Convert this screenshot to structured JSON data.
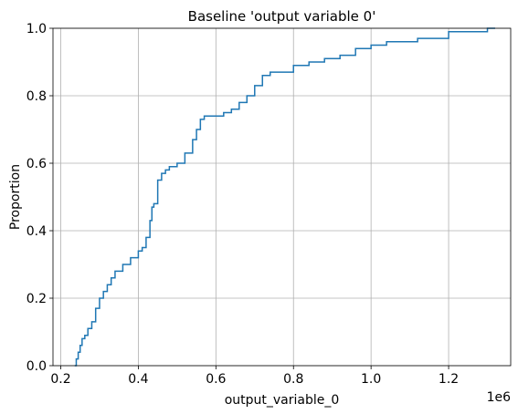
{
  "chart_data": {
    "type": "line",
    "title": "Baseline 'output variable 0'",
    "xlabel": "output_variable_0",
    "ylabel": "Proportion",
    "x_offset_label": "1e6",
    "xlim": [
      0.18,
      1.36
    ],
    "ylim": [
      0,
      1
    ],
    "grid": true,
    "x_ticks": [
      0.2,
      0.4,
      0.6,
      0.8,
      1.0,
      1.2
    ],
    "x_tick_labels": [
      "0.2",
      "0.4",
      "0.6",
      "0.8",
      "1.0",
      "1.2"
    ],
    "y_ticks": [
      0.0,
      0.2,
      0.4,
      0.6,
      0.8,
      1.0
    ],
    "y_tick_labels": [
      "0.0",
      "0.2",
      "0.4",
      "0.6",
      "0.8",
      "1.0"
    ],
    "series": [
      {
        "name": "output_variable_0",
        "color": "#1f77b4",
        "step": true,
        "x": [
          0.236,
          0.24,
          0.245,
          0.25,
          0.255,
          0.262,
          0.27,
          0.28,
          0.29,
          0.3,
          0.31,
          0.32,
          0.33,
          0.34,
          0.36,
          0.38,
          0.4,
          0.41,
          0.42,
          0.43,
          0.435,
          0.44,
          0.45,
          0.46,
          0.47,
          0.48,
          0.5,
          0.52,
          0.54,
          0.55,
          0.56,
          0.57,
          0.58,
          0.6,
          0.62,
          0.64,
          0.66,
          0.68,
          0.7,
          0.72,
          0.74,
          0.76,
          0.8,
          0.84,
          0.88,
          0.92,
          0.96,
          1.0,
          1.04,
          1.08,
          1.12,
          1.2,
          1.3,
          1.32
        ],
        "y": [
          0.0,
          0.02,
          0.04,
          0.06,
          0.08,
          0.09,
          0.11,
          0.13,
          0.17,
          0.2,
          0.22,
          0.24,
          0.26,
          0.28,
          0.3,
          0.32,
          0.34,
          0.35,
          0.38,
          0.43,
          0.47,
          0.48,
          0.55,
          0.57,
          0.58,
          0.59,
          0.6,
          0.63,
          0.67,
          0.7,
          0.73,
          0.74,
          0.74,
          0.74,
          0.75,
          0.76,
          0.78,
          0.8,
          0.83,
          0.86,
          0.87,
          0.87,
          0.89,
          0.9,
          0.91,
          0.92,
          0.94,
          0.95,
          0.96,
          0.96,
          0.97,
          0.99,
          1.0,
          1.0
        ]
      }
    ]
  }
}
